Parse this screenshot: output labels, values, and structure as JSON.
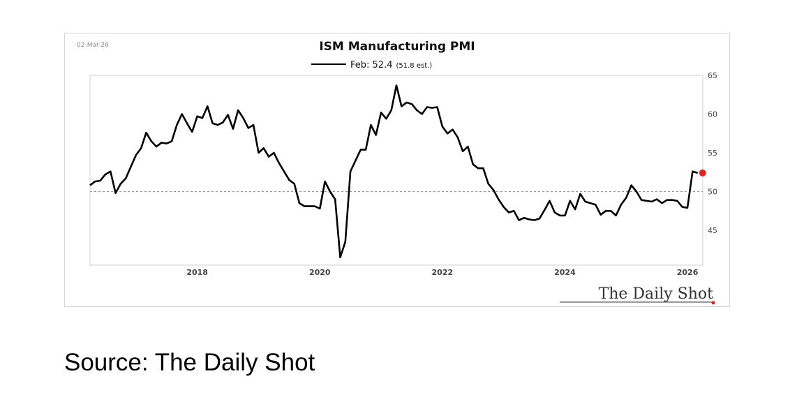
{
  "chart_data": {
    "type": "line",
    "title": "ISM Manufacturing PMI",
    "date_stamp": "02-Mar-26",
    "legend": {
      "label": "Feb: 52.4",
      "note": "(51.8 est.)",
      "placement": "top-center"
    },
    "x_start": "2016-04",
    "x_ticks": [
      "2018",
      "2020",
      "2022",
      "2024",
      "2026"
    ],
    "y_ticks": [
      "45",
      "50",
      "55",
      "60",
      "65"
    ],
    "ylim": [
      40.5,
      65
    ],
    "xlim": [
      2016.25,
      2026.25
    ],
    "y_axis_side": "right",
    "reference_line": 50,
    "grid": false,
    "series": [
      {
        "name": "Feb: 52.4",
        "color": "#000000",
        "frequency": "monthly",
        "values": [
          50.8,
          51.3,
          51.4,
          52.2,
          52.6,
          49.8,
          51.0,
          51.7,
          53.2,
          54.7,
          55.6,
          57.6,
          56.5,
          55.8,
          56.3,
          56.2,
          56.5,
          58.6,
          60.0,
          58.8,
          57.7,
          59.7,
          59.5,
          61.0,
          58.8,
          58.6,
          58.9,
          59.9,
          58.1,
          60.5,
          59.5,
          58.2,
          58.6,
          55.0,
          55.6,
          54.5,
          55.0,
          53.7,
          52.6,
          51.5,
          51.0,
          48.5,
          48.1,
          48.1,
          48.1,
          47.8,
          51.3,
          50.0,
          49.0,
          41.5,
          43.5,
          52.6,
          54.0,
          55.4,
          55.4,
          58.6,
          57.3,
          60.2,
          59.4,
          60.5,
          63.7,
          61.0,
          61.5,
          61.3,
          60.5,
          60.0,
          60.9,
          60.8,
          60.9,
          58.4,
          57.5,
          58.0,
          57.0,
          55.2,
          55.8,
          53.5,
          53.0,
          53.0,
          51.0,
          50.2,
          49.0,
          48.0,
          47.3,
          47.5,
          46.3,
          46.6,
          46.4,
          46.3,
          46.5,
          47.6,
          48.8,
          47.3,
          46.9,
          46.9,
          48.8,
          47.7,
          49.7,
          48.7,
          48.5,
          48.3,
          47.0,
          47.5,
          47.5,
          46.9,
          48.3,
          49.2,
          50.8,
          50.0,
          48.9,
          48.8,
          48.7,
          49.0,
          48.5,
          48.9,
          48.9,
          48.8,
          48.0,
          47.9,
          52.6,
          52.4
        ]
      }
    ],
    "highlight_point": {
      "label": "Feb 2026",
      "value": 52.4,
      "color": "#e02424"
    },
    "reference_line_color": "#999999"
  },
  "watermark": {
    "text": "The Daily Shot"
  },
  "source": "Source: The Daily Shot"
}
